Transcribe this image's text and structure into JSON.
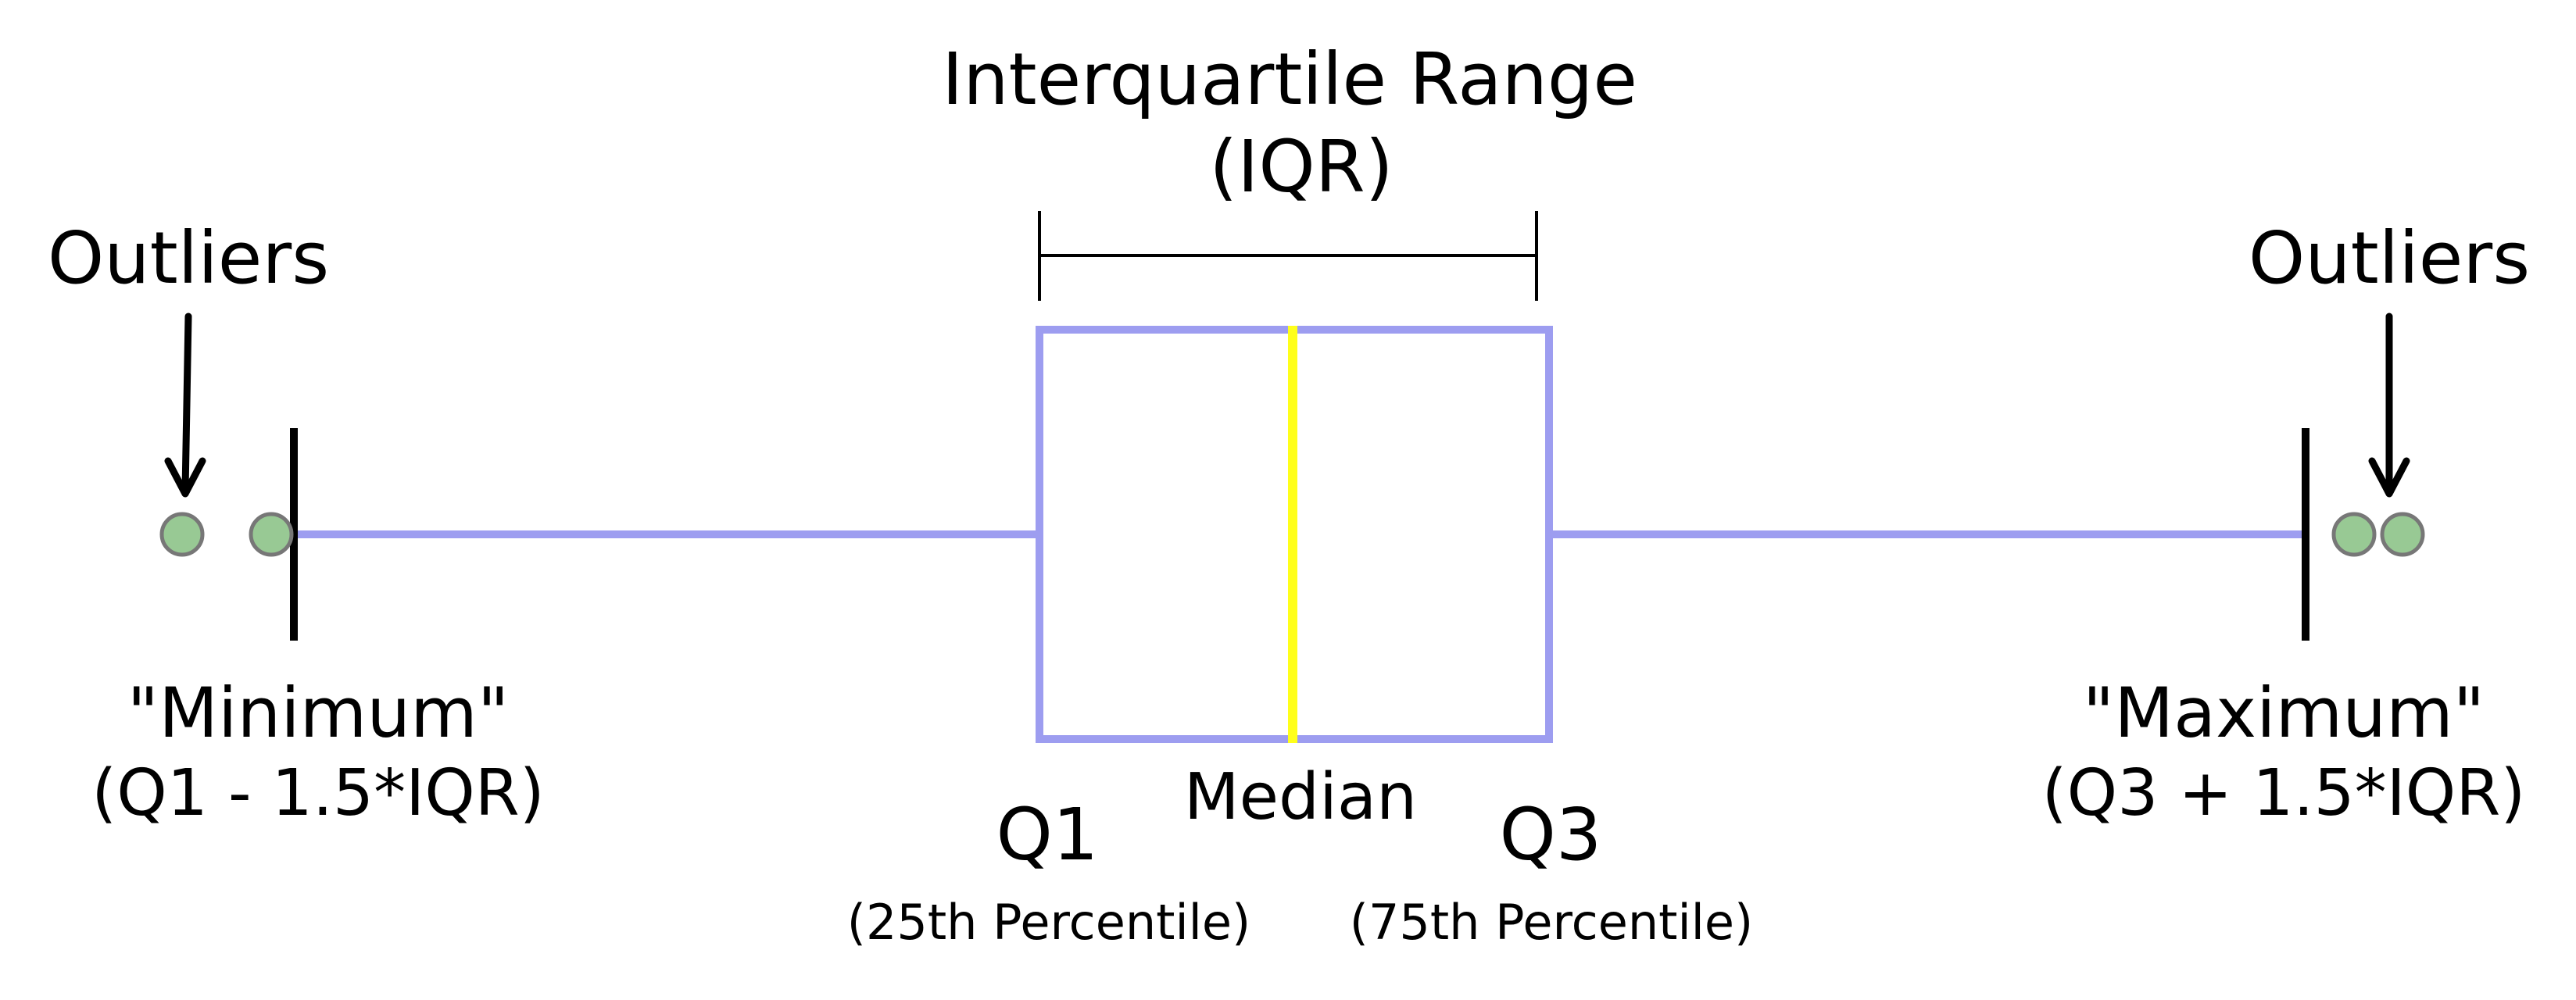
{
  "labels": {
    "iqr_title_line1": "Interquartile Range",
    "iqr_title_line2": "(IQR)",
    "outliers_left": "Outliers",
    "outliers_right": "Outliers",
    "minimum_title": "\"Minimum\"",
    "minimum_formula": "(Q1 - 1.5*IQR)",
    "maximum_title": "\"Maximum\"",
    "maximum_formula": "(Q3 + 1.5*IQR)",
    "median": "Median",
    "q1": "Q1",
    "q1_sub": "(25th Percentile)",
    "q3": "Q3",
    "q3_sub": "(75th Percentile)"
  },
  "colors": {
    "box": "#9d9df0",
    "median": "#ffff1a",
    "outlier_fill": "#98c994",
    "outlier_stroke": "#777777",
    "ink": "#000000"
  }
}
